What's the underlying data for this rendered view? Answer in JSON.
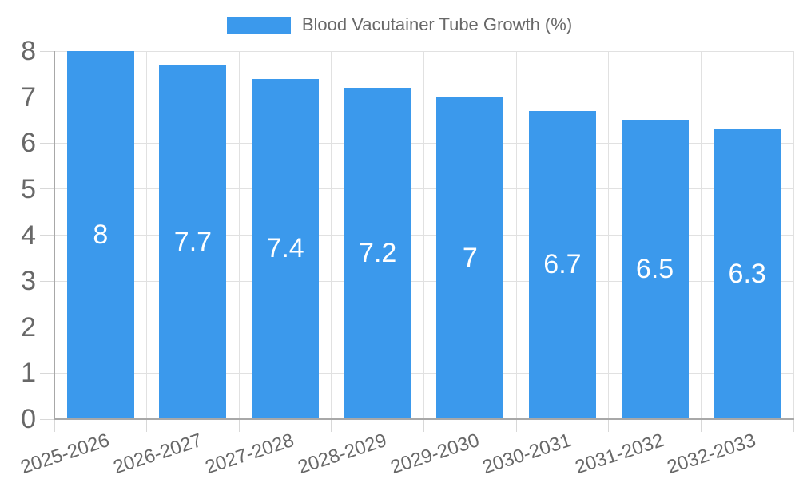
{
  "legend": {
    "label": "Blood Vacutainer Tube Growth (%)"
  },
  "colors": {
    "bar": "#3B99EC",
    "grid": "#E1E1E1",
    "tick": "#D8D8D8",
    "axis": "#A8A8A8",
    "text": "#686868",
    "bar_label": "#FFFFFF",
    "background": "#FFFFFF"
  },
  "chart_data": {
    "type": "bar",
    "title": "Blood Vacutainer Tube Growth (%)",
    "categories": [
      "2025-2026",
      "2026-2027",
      "2027-2028",
      "2028-2029",
      "2029-2030",
      "2030-2031",
      "2031-2032",
      "2032-2033"
    ],
    "values": [
      8,
      7.7,
      7.4,
      7.2,
      7,
      6.7,
      6.5,
      6.3
    ],
    "value_labels": [
      "8",
      "7.7",
      "7.4",
      "7.2",
      "7",
      "6.7",
      "6.5",
      "6.3"
    ],
    "xlabel": "",
    "ylabel": "",
    "ylim": [
      0,
      8
    ],
    "yticks": [
      0,
      1,
      2,
      3,
      4,
      5,
      6,
      7,
      8
    ],
    "ytick_labels": [
      "0",
      "1",
      "2",
      "3",
      "4",
      "5",
      "6",
      "7",
      "8"
    ],
    "grid": true,
    "legend_position": "top",
    "x_label_rotation_deg": -18,
    "value_label_position": "inside-center"
  }
}
